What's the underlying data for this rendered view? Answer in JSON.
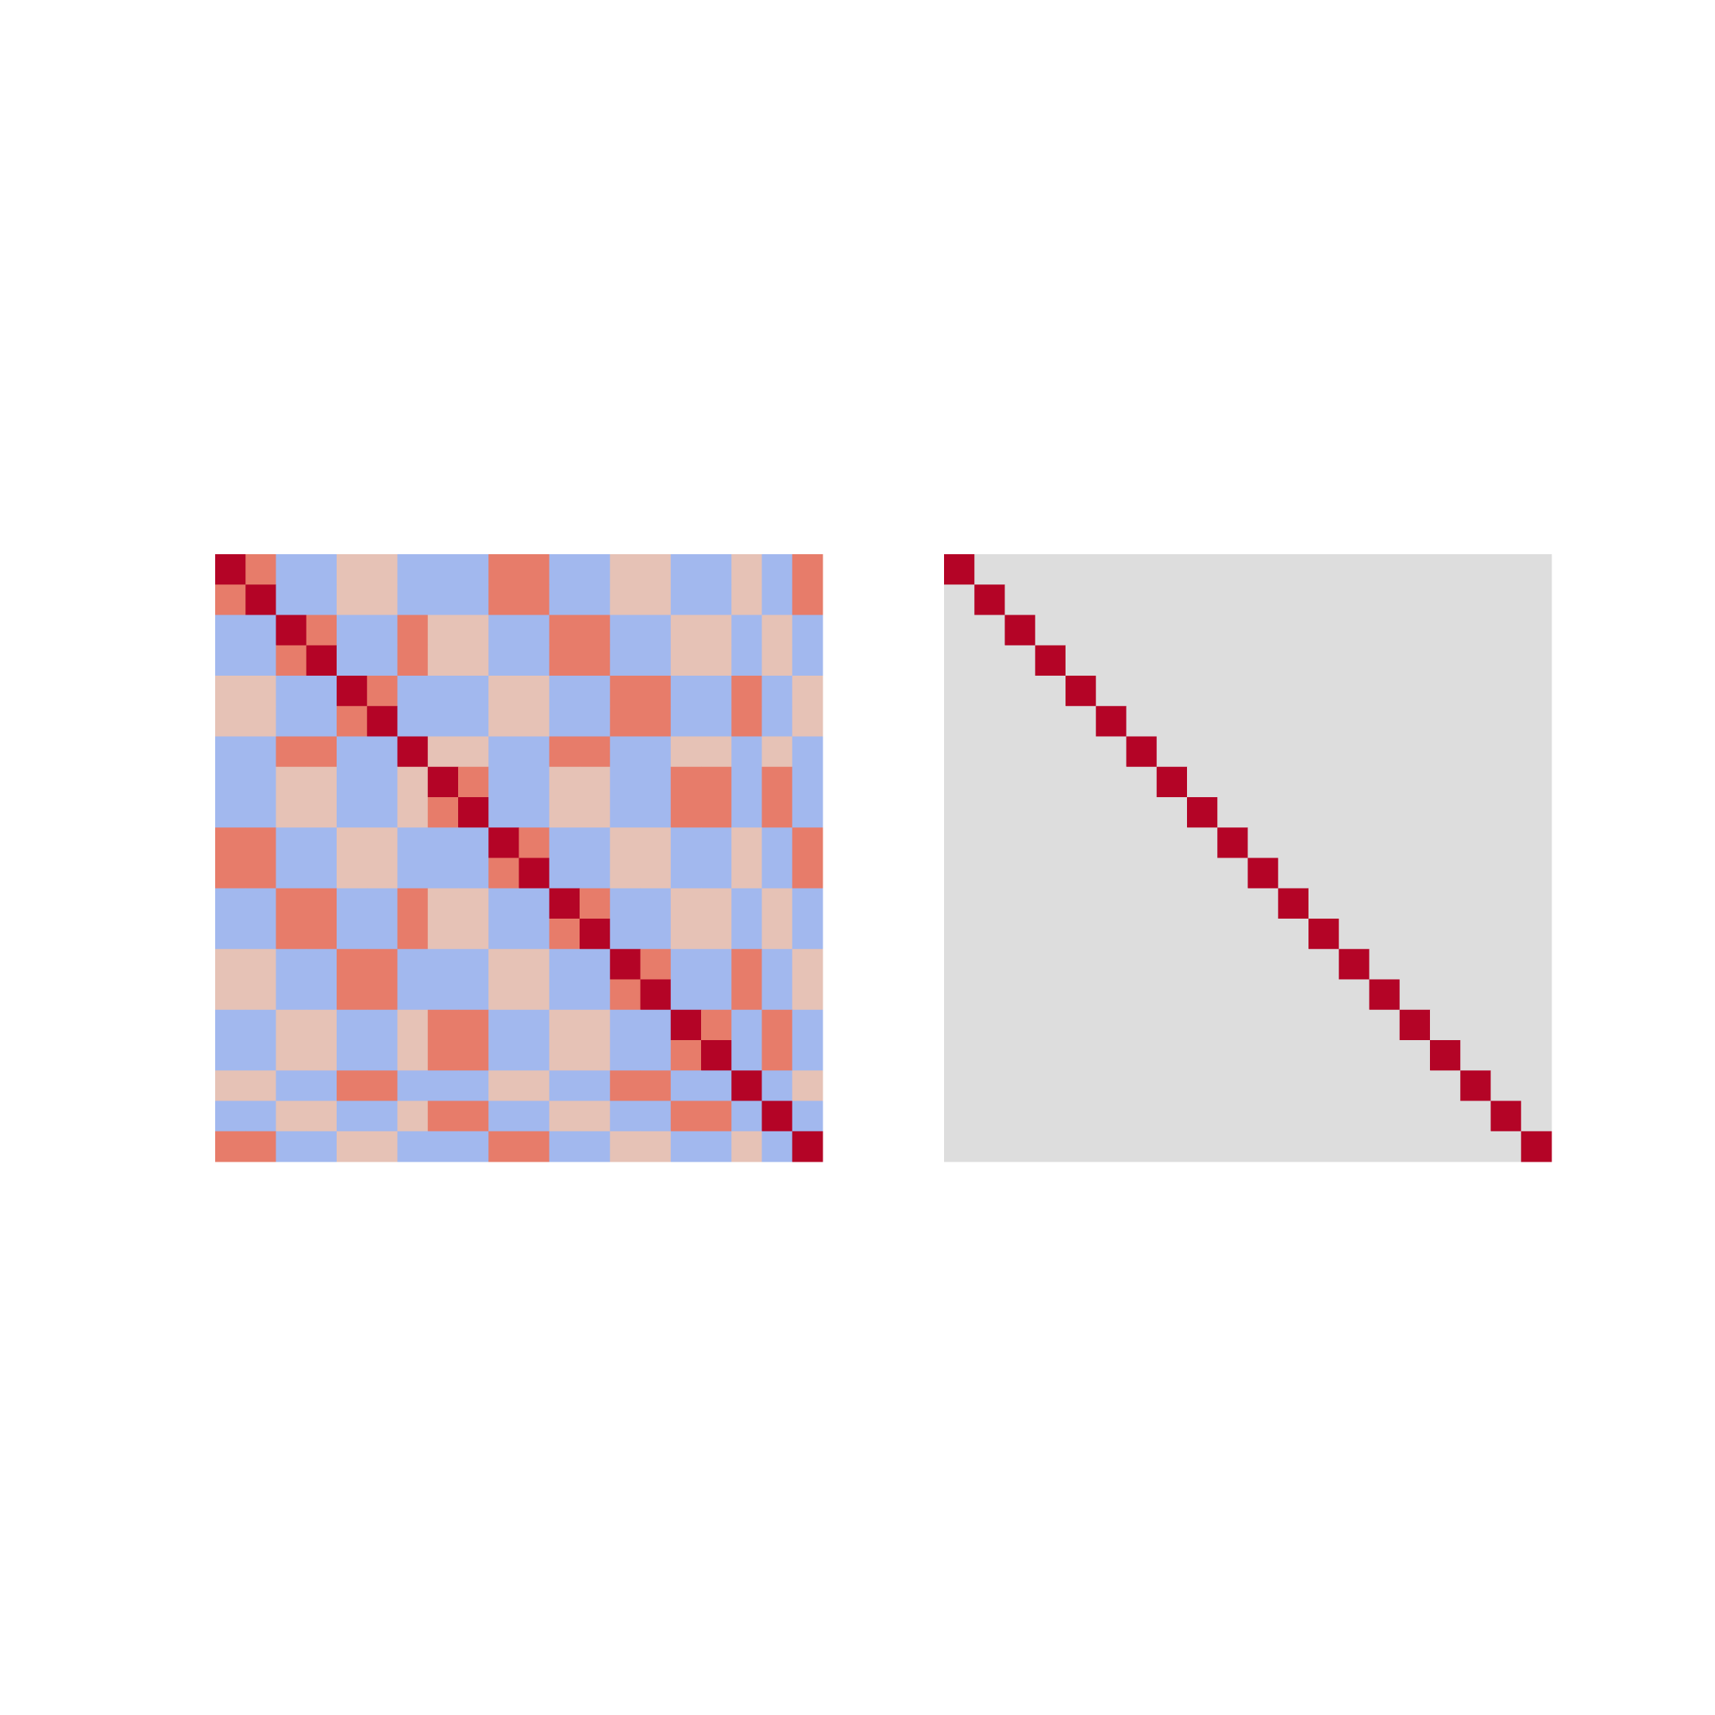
{
  "chart_data": [
    {
      "type": "heatmap",
      "colormap": "coolwarm",
      "vlim": [
        -1,
        1
      ],
      "z": [
        [
          1,
          0.6,
          -0.3,
          -0.3,
          0.2,
          0.2,
          -0.3,
          -0.3,
          -0.3,
          0.6,
          0.6,
          -0.3,
          -0.3,
          0.2,
          0.2,
          -0.3,
          -0.3,
          0.2,
          -0.3,
          0.6
        ],
        [
          0.6,
          1,
          -0.3,
          -0.3,
          0.2,
          0.2,
          -0.3,
          -0.3,
          -0.3,
          0.6,
          0.6,
          -0.3,
          -0.3,
          0.2,
          0.2,
          -0.3,
          -0.3,
          0.2,
          -0.3,
          0.6
        ],
        [
          -0.3,
          -0.3,
          1,
          0.6,
          -0.3,
          -0.3,
          0.6,
          0.2,
          0.2,
          -0.3,
          -0.3,
          0.6,
          0.6,
          -0.3,
          -0.3,
          0.2,
          0.2,
          -0.3,
          0.2,
          -0.3
        ],
        [
          -0.3,
          -0.3,
          0.6,
          1,
          -0.3,
          -0.3,
          0.6,
          0.2,
          0.2,
          -0.3,
          -0.3,
          0.6,
          0.6,
          -0.3,
          -0.3,
          0.2,
          0.2,
          -0.3,
          0.2,
          -0.3
        ],
        [
          0.2,
          0.2,
          -0.3,
          -0.3,
          1,
          0.6,
          -0.3,
          -0.3,
          -0.3,
          0.2,
          0.2,
          -0.3,
          -0.3,
          0.6,
          0.6,
          -0.3,
          -0.3,
          0.6,
          -0.3,
          0.2
        ],
        [
          0.2,
          0.2,
          -0.3,
          -0.3,
          0.6,
          1,
          -0.3,
          -0.3,
          -0.3,
          0.2,
          0.2,
          -0.3,
          -0.3,
          0.6,
          0.6,
          -0.3,
          -0.3,
          0.6,
          -0.3,
          0.2
        ],
        [
          -0.3,
          -0.3,
          0.6,
          0.6,
          -0.3,
          -0.3,
          1,
          0.2,
          0.2,
          -0.3,
          -0.3,
          0.6,
          0.6,
          -0.3,
          -0.3,
          0.2,
          0.2,
          -0.3,
          0.2,
          -0.3
        ],
        [
          -0.3,
          -0.3,
          0.2,
          0.2,
          -0.3,
          -0.3,
          0.2,
          1,
          0.6,
          -0.3,
          -0.3,
          0.2,
          0.2,
          -0.3,
          -0.3,
          0.6,
          0.6,
          -0.3,
          0.6,
          -0.3
        ],
        [
          -0.3,
          -0.3,
          0.2,
          0.2,
          -0.3,
          -0.3,
          0.2,
          0.6,
          1,
          -0.3,
          -0.3,
          0.2,
          0.2,
          -0.3,
          -0.3,
          0.6,
          0.6,
          -0.3,
          0.6,
          -0.3
        ],
        [
          0.6,
          0.6,
          -0.3,
          -0.3,
          0.2,
          0.2,
          -0.3,
          -0.3,
          -0.3,
          1,
          0.6,
          -0.3,
          -0.3,
          0.2,
          0.2,
          -0.3,
          -0.3,
          0.2,
          -0.3,
          0.6
        ],
        [
          0.6,
          0.6,
          -0.3,
          -0.3,
          0.2,
          0.2,
          -0.3,
          -0.3,
          -0.3,
          0.6,
          1,
          -0.3,
          -0.3,
          0.2,
          0.2,
          -0.3,
          -0.3,
          0.2,
          -0.3,
          0.6
        ],
        [
          -0.3,
          -0.3,
          0.6,
          0.6,
          -0.3,
          -0.3,
          0.6,
          0.2,
          0.2,
          -0.3,
          -0.3,
          1,
          0.6,
          -0.3,
          -0.3,
          0.2,
          0.2,
          -0.3,
          0.2,
          -0.3
        ],
        [
          -0.3,
          -0.3,
          0.6,
          0.6,
          -0.3,
          -0.3,
          0.6,
          0.2,
          0.2,
          -0.3,
          -0.3,
          0.6,
          1,
          -0.3,
          -0.3,
          0.2,
          0.2,
          -0.3,
          0.2,
          -0.3
        ],
        [
          0.2,
          0.2,
          -0.3,
          -0.3,
          0.6,
          0.6,
          -0.3,
          -0.3,
          -0.3,
          0.2,
          0.2,
          -0.3,
          -0.3,
          1,
          0.6,
          -0.3,
          -0.3,
          0.6,
          -0.3,
          0.2
        ],
        [
          0.2,
          0.2,
          -0.3,
          -0.3,
          0.6,
          0.6,
          -0.3,
          -0.3,
          -0.3,
          0.2,
          0.2,
          -0.3,
          -0.3,
          0.6,
          1,
          -0.3,
          -0.3,
          0.6,
          -0.3,
          0.2
        ],
        [
          -0.3,
          -0.3,
          0.2,
          0.2,
          -0.3,
          -0.3,
          0.2,
          0.6,
          0.6,
          -0.3,
          -0.3,
          0.2,
          0.2,
          -0.3,
          -0.3,
          1,
          0.6,
          -0.3,
          0.6,
          -0.3
        ],
        [
          -0.3,
          -0.3,
          0.2,
          0.2,
          -0.3,
          -0.3,
          0.2,
          0.6,
          0.6,
          -0.3,
          -0.3,
          0.2,
          0.2,
          -0.3,
          -0.3,
          0.6,
          1,
          -0.3,
          0.6,
          -0.3
        ],
        [
          0.2,
          0.2,
          -0.3,
          -0.3,
          0.6,
          0.6,
          -0.3,
          -0.3,
          -0.3,
          0.2,
          0.2,
          -0.3,
          -0.3,
          0.6,
          0.6,
          -0.3,
          -0.3,
          1,
          -0.3,
          0.2
        ],
        [
          -0.3,
          -0.3,
          0.2,
          0.2,
          -0.3,
          -0.3,
          0.2,
          0.6,
          0.6,
          -0.3,
          -0.3,
          0.2,
          0.2,
          -0.3,
          -0.3,
          0.6,
          0.6,
          -0.3,
          1,
          -0.3
        ],
        [
          0.6,
          0.6,
          -0.3,
          -0.3,
          0.2,
          0.2,
          -0.3,
          -0.3,
          -0.3,
          0.6,
          0.6,
          -0.3,
          -0.3,
          0.2,
          0.2,
          -0.3,
          -0.3,
          0.2,
          -0.3,
          1
        ]
      ]
    },
    {
      "type": "heatmap",
      "colormap": "coolwarm",
      "vlim": [
        -1,
        1
      ],
      "z": [
        [
          1,
          0,
          0,
          0,
          0,
          0,
          0,
          0,
          0,
          0,
          0,
          0,
          0,
          0,
          0,
          0,
          0,
          0,
          0,
          0
        ],
        [
          0,
          1,
          0,
          0,
          0,
          0,
          0,
          0,
          0,
          0,
          0,
          0,
          0,
          0,
          0,
          0,
          0,
          0,
          0,
          0
        ],
        [
          0,
          0,
          1,
          0,
          0,
          0,
          0,
          0,
          0,
          0,
          0,
          0,
          0,
          0,
          0,
          0,
          0,
          0,
          0,
          0
        ],
        [
          0,
          0,
          0,
          1,
          0,
          0,
          0,
          0,
          0,
          0,
          0,
          0,
          0,
          0,
          0,
          0,
          0,
          0,
          0,
          0
        ],
        [
          0,
          0,
          0,
          0,
          1,
          0,
          0,
          0,
          0,
          0,
          0,
          0,
          0,
          0,
          0,
          0,
          0,
          0,
          0,
          0
        ],
        [
          0,
          0,
          0,
          0,
          0,
          1,
          0,
          0,
          0,
          0,
          0,
          0,
          0,
          0,
          0,
          0,
          0,
          0,
          0,
          0
        ],
        [
          0,
          0,
          0,
          0,
          0,
          0,
          1,
          0,
          0,
          0,
          0,
          0,
          0,
          0,
          0,
          0,
          0,
          0,
          0,
          0
        ],
        [
          0,
          0,
          0,
          0,
          0,
          0,
          0,
          1,
          0,
          0,
          0,
          0,
          0,
          0,
          0,
          0,
          0,
          0,
          0,
          0
        ],
        [
          0,
          0,
          0,
          0,
          0,
          0,
          0,
          0,
          1,
          0,
          0,
          0,
          0,
          0,
          0,
          0,
          0,
          0,
          0,
          0
        ],
        [
          0,
          0,
          0,
          0,
          0,
          0,
          0,
          0,
          0,
          1,
          0,
          0,
          0,
          0,
          0,
          0,
          0,
          0,
          0,
          0
        ],
        [
          0,
          0,
          0,
          0,
          0,
          0,
          0,
          0,
          0,
          0,
          1,
          0,
          0,
          0,
          0,
          0,
          0,
          0,
          0,
          0
        ],
        [
          0,
          0,
          0,
          0,
          0,
          0,
          0,
          0,
          0,
          0,
          0,
          1,
          0,
          0,
          0,
          0,
          0,
          0,
          0,
          0
        ],
        [
          0,
          0,
          0,
          0,
          0,
          0,
          0,
          0,
          0,
          0,
          0,
          0,
          1,
          0,
          0,
          0,
          0,
          0,
          0,
          0
        ],
        [
          0,
          0,
          0,
          0,
          0,
          0,
          0,
          0,
          0,
          0,
          0,
          0,
          0,
          1,
          0,
          0,
          0,
          0,
          0,
          0
        ],
        [
          0,
          0,
          0,
          0,
          0,
          0,
          0,
          0,
          0,
          0,
          0,
          0,
          0,
          0,
          1,
          0,
          0,
          0,
          0,
          0
        ],
        [
          0,
          0,
          0,
          0,
          0,
          0,
          0,
          0,
          0,
          0,
          0,
          0,
          0,
          0,
          0,
          1,
          0,
          0,
          0,
          0
        ],
        [
          0,
          0,
          0,
          0,
          0,
          0,
          0,
          0,
          0,
          0,
          0,
          0,
          0,
          0,
          0,
          0,
          1,
          0,
          0,
          0
        ],
        [
          0,
          0,
          0,
          0,
          0,
          0,
          0,
          0,
          0,
          0,
          0,
          0,
          0,
          0,
          0,
          0,
          0,
          1,
          0,
          0
        ],
        [
          0,
          0,
          0,
          0,
          0,
          0,
          0,
          0,
          0,
          0,
          0,
          0,
          0,
          0,
          0,
          0,
          0,
          0,
          1,
          0
        ],
        [
          0,
          0,
          0,
          0,
          0,
          0,
          0,
          0,
          0,
          0,
          0,
          0,
          0,
          0,
          0,
          0,
          0,
          0,
          0,
          1
        ]
      ]
    }
  ]
}
